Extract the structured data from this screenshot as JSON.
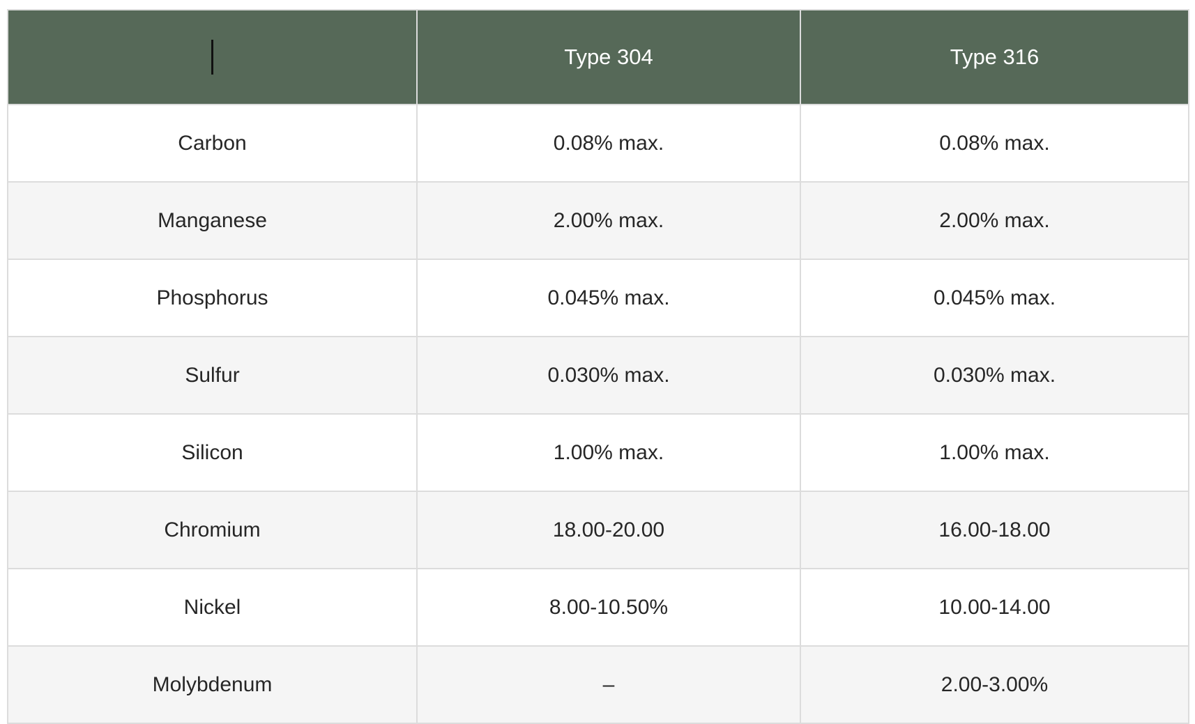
{
  "table": {
    "header": {
      "blank_label": "",
      "col_type304": "Type 304",
      "col_type316": "Type 316",
      "caret_visible": true
    },
    "rows": [
      {
        "element": "Carbon",
        "type304": "0.08% max.",
        "type316": "0.08% max."
      },
      {
        "element": "Manganese",
        "type304": "2.00% max.",
        "type316": "2.00% max."
      },
      {
        "element": "Phosphorus",
        "type304": "0.045% max.",
        "type316": "0.045% max."
      },
      {
        "element": "Sulfur",
        "type304": "0.030% max.",
        "type316": "0.030% max."
      },
      {
        "element": "Silicon",
        "type304": "1.00% max.",
        "type316": "1.00% max."
      },
      {
        "element": "Chromium",
        "type304": "18.00-20.00",
        "type316": "16.00-18.00"
      },
      {
        "element": "Nickel",
        "type304": "8.00-10.50%",
        "type316": "10.00-14.00"
      },
      {
        "element": "Molybdenum",
        "type304": "–",
        "type316": "2.00-3.00%"
      }
    ],
    "colors": {
      "header_bg": "#566958",
      "header_text": "#ffffff",
      "row_white": "#ffffff",
      "row_gray": "#f5f5f5",
      "border": "#dcdcdc",
      "cell_text": "#262626",
      "caret": "#111111"
    }
  },
  "chart_data": {
    "type": "table",
    "columns": [
      "",
      "Type 304",
      "Type 316"
    ],
    "rows": [
      [
        "Carbon",
        "0.08% max.",
        "0.08% max."
      ],
      [
        "Manganese",
        "2.00% max.",
        "2.00% max."
      ],
      [
        "Phosphorus",
        "0.045% max.",
        "0.045% max."
      ],
      [
        "Sulfur",
        "0.030% max.",
        "0.030% max."
      ],
      [
        "Silicon",
        "1.00% max.",
        "1.00% max."
      ],
      [
        "Chromium",
        "18.00-20.00",
        "16.00-18.00"
      ],
      [
        "Nickel",
        "8.00-10.50%",
        "10.00-14.00"
      ],
      [
        "Molybdenum",
        "–",
        "2.00-3.00%"
      ]
    ]
  }
}
